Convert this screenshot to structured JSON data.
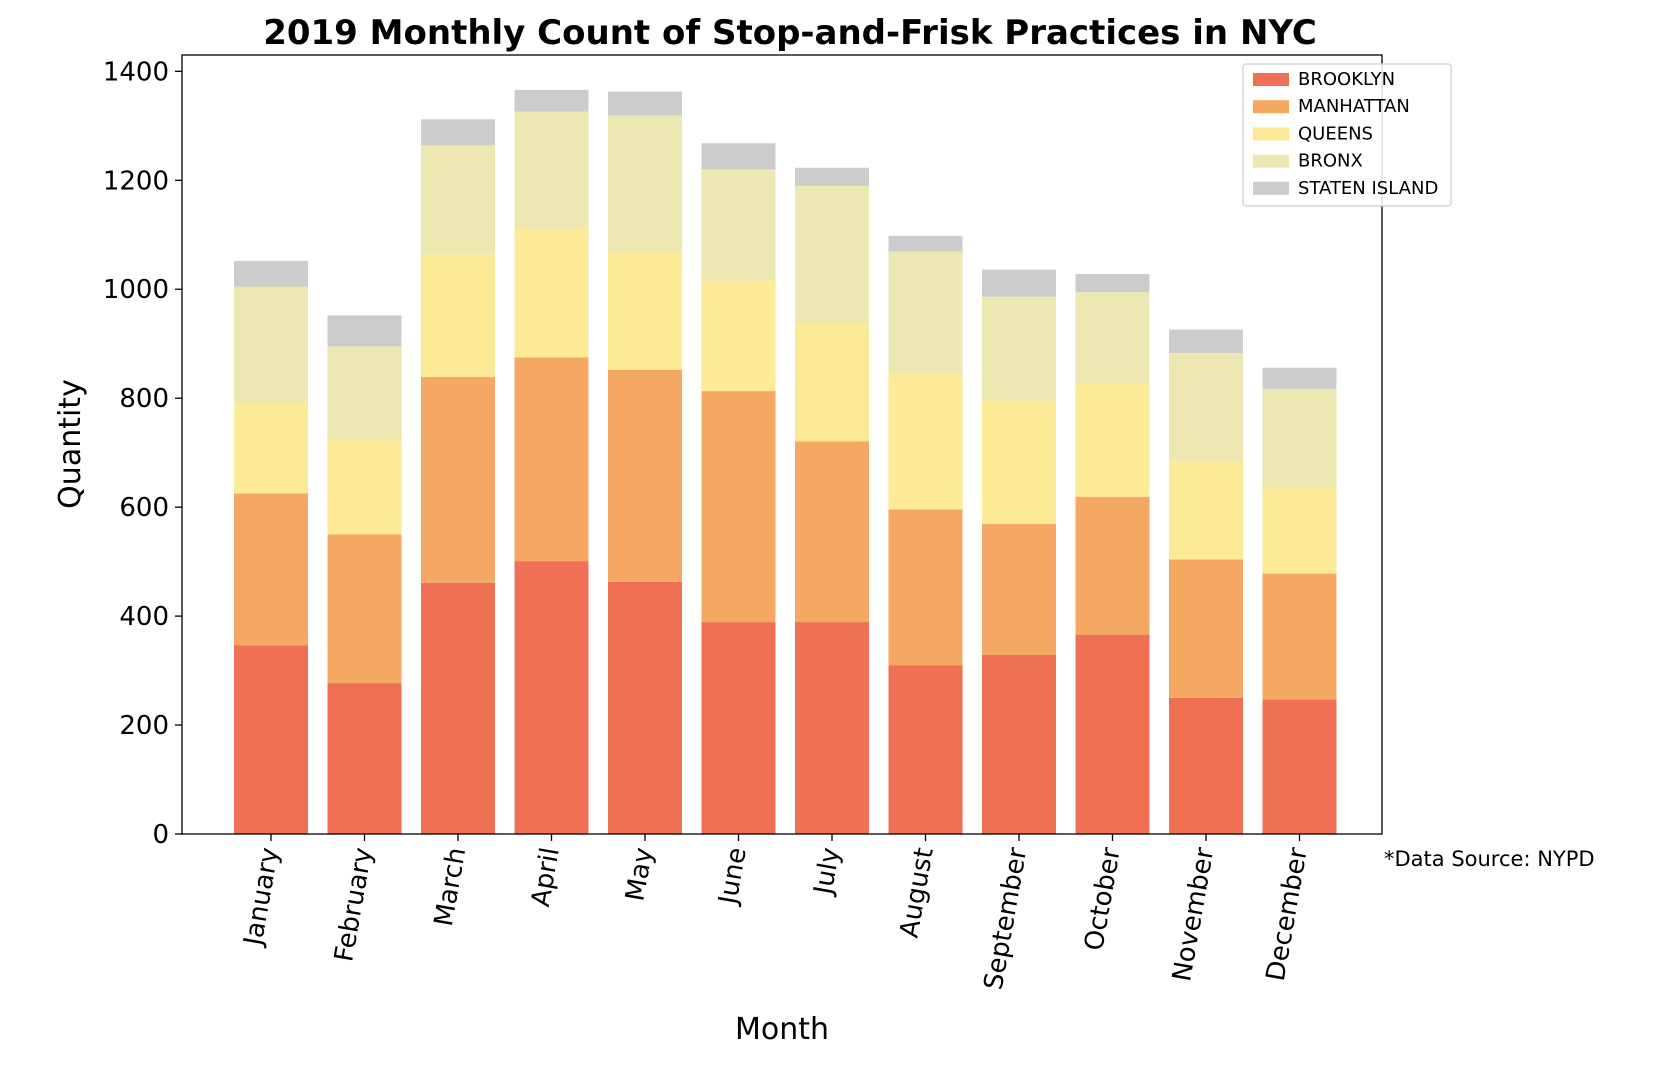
{
  "chart_data": {
    "type": "bar",
    "stacked": true,
    "title": "2019 Monthly Count of Stop-and-Frisk Practices in NYC",
    "xlabel": "Month",
    "ylabel": "Quantity",
    "ylim": [
      0,
      1430
    ],
    "yticks": [
      0,
      200,
      400,
      600,
      800,
      1000,
      1200,
      1400
    ],
    "ytick_labels": [
      "0",
      "200",
      "400",
      "600",
      "800",
      "1000",
      "1200",
      "1400"
    ],
    "grid": false,
    "legend_position": "top-right",
    "annotation": "*Data Source: NYPD",
    "categories": [
      "January",
      "February",
      "March",
      "April",
      "May",
      "June",
      "July",
      "August",
      "September",
      "October",
      "November",
      "December"
    ],
    "series": [
      {
        "name": "BROOKLYN",
        "color": "#f07055",
        "values": [
          346,
          277,
          461,
          501,
          463,
          389,
          389,
          310,
          329,
          366,
          250,
          247
        ]
      },
      {
        "name": "MANHATTAN",
        "color": "#f4a861",
        "values": [
          279,
          273,
          378,
          374,
          389,
          424,
          332,
          286,
          240,
          253,
          254,
          231
        ]
      },
      {
        "name": "QUEENS",
        "color": "#fcea96",
        "values": [
          165,
          175,
          225,
          234,
          216,
          201,
          216,
          251,
          226,
          207,
          180,
          157
        ]
      },
      {
        "name": "BRONX",
        "color": "#ede7b1",
        "values": [
          215,
          170,
          200,
          217,
          251,
          206,
          253,
          222,
          191,
          169,
          199,
          182
        ]
      },
      {
        "name": "STATEN ISLAND",
        "color": "#cccccc",
        "values": [
          47,
          57,
          48,
          40,
          44,
          48,
          33,
          29,
          50,
          33,
          43,
          39
        ]
      }
    ]
  }
}
